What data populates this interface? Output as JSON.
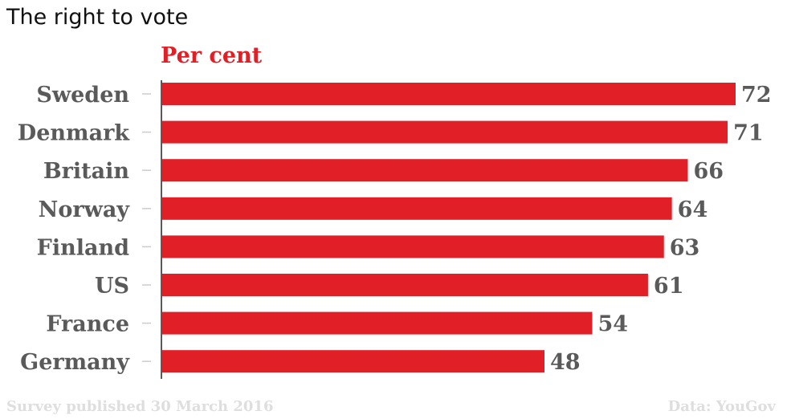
{
  "title": "The right to vote",
  "chart_data": {
    "type": "bar",
    "orientation": "horizontal",
    "unit_label": "Per cent",
    "categories": [
      "Sweden",
      "Denmark",
      "Britain",
      "Norway",
      "Finland",
      "US",
      "France",
      "Germany"
    ],
    "values": [
      72,
      71,
      66,
      64,
      63,
      61,
      54,
      48
    ],
    "data_labels": true,
    "xlim": [
      0,
      72
    ],
    "grid": false,
    "bar_color": "#e01f26"
  },
  "footer": {
    "source_note": "Survey published 30 March 2016",
    "credit": "Data: YouGov"
  },
  "colors": {
    "accent": "#e01f26",
    "label": "#5a5a5a",
    "footer": "#dedede"
  }
}
